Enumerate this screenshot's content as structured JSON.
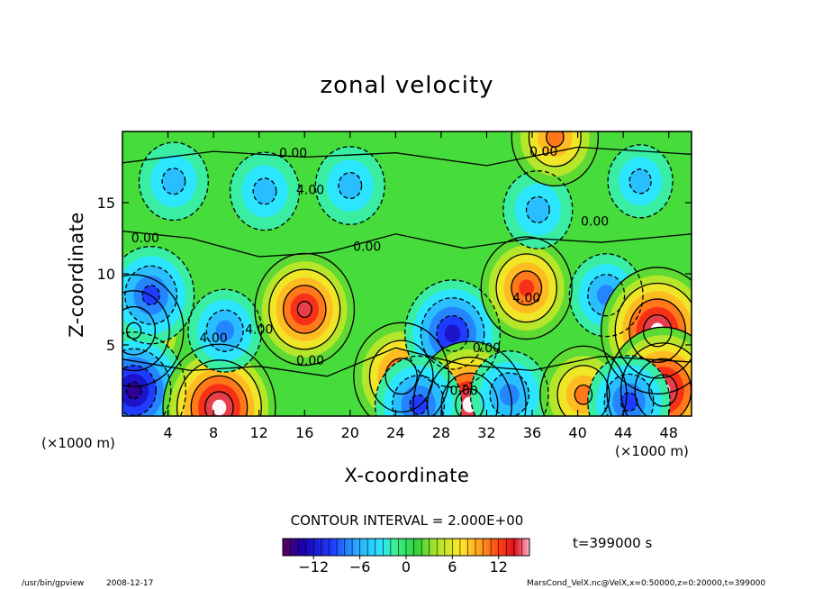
{
  "chart_data": {
    "type": "heatmap",
    "title": "zonal velocity",
    "xlabel": "X-coordinate",
    "ylabel": "Z-coordinate",
    "x_unit_label": "(×1000 m)",
    "z_unit_label": "(×1000 m)",
    "xlim": [
      0,
      50
    ],
    "ylim": [
      0,
      20
    ],
    "x_ticks": [
      4,
      8,
      12,
      16,
      20,
      24,
      28,
      32,
      36,
      40,
      44,
      48
    ],
    "x_tick_labels": [
      "4",
      "8",
      "12",
      "16",
      "20",
      "24",
      "28",
      "32",
      "36",
      "40",
      "44",
      "48"
    ],
    "y_ticks": [
      5,
      10,
      15
    ],
    "y_tick_labels": [
      "5",
      "10",
      "15"
    ],
    "contour_interval_text": "CONTOUR INTERVAL = 2.000E+00",
    "time_text": "t=399000 s",
    "colorbar": {
      "range": [
        -16,
        16
      ],
      "ticks": [
        -12,
        -6,
        0,
        6,
        12
      ],
      "tick_labels": [
        "−12",
        "−6",
        "0",
        "6",
        "12"
      ]
    },
    "contour_labels": [
      "0.00",
      "4.00",
      "0.00",
      "0.00",
      "0.00",
      "0.00",
      "4.00",
      "0.00",
      "4.00",
      "4.00",
      "0.00",
      "0.00"
    ],
    "features": [
      {
        "x": 1.0,
        "z": 6.0,
        "value": 13
      },
      {
        "x": 2.5,
        "z": 8.5,
        "value": -10
      },
      {
        "x": 1.0,
        "z": 1.8,
        "value": -14
      },
      {
        "x": 4.5,
        "z": 16.5,
        "value": -6
      },
      {
        "x": 8.5,
        "z": 0.6,
        "value": 16
      },
      {
        "x": 9.0,
        "z": 6.0,
        "value": -7
      },
      {
        "x": 16.0,
        "z": 7.5,
        "value": 13
      },
      {
        "x": 12.5,
        "z": 15.8,
        "value": -6
      },
      {
        "x": 20.0,
        "z": 16.2,
        "value": -6
      },
      {
        "x": 24.5,
        "z": 2.8,
        "value": 12
      },
      {
        "x": 29.0,
        "z": 5.8,
        "value": -12
      },
      {
        "x": 30.5,
        "z": 0.8,
        "value": 16
      },
      {
        "x": 26.0,
        "z": 0.8,
        "value": -10
      },
      {
        "x": 34.0,
        "z": 1.5,
        "value": -8
      },
      {
        "x": 35.5,
        "z": 9.0,
        "value": 11
      },
      {
        "x": 36.5,
        "z": 14.5,
        "value": -6
      },
      {
        "x": 38.0,
        "z": 19.6,
        "value": 10
      },
      {
        "x": 40.5,
        "z": 1.5,
        "value": 10
      },
      {
        "x": 42.5,
        "z": 8.5,
        "value": -7
      },
      {
        "x": 45.5,
        "z": 16.5,
        "value": -5
      },
      {
        "x": 47.0,
        "z": 6.0,
        "value": 16
      },
      {
        "x": 47.5,
        "z": 1.8,
        "value": 16
      },
      {
        "x": 44.5,
        "z": 1.0,
        "value": -9
      }
    ],
    "legend": "none",
    "grid": false
  },
  "footer": {
    "program": "/usr/bin/gpview",
    "date": "2008-12-17",
    "source": "MarsCond_VelX.nc@VelX,x=0:50000,z=0:20000,t=399000"
  }
}
